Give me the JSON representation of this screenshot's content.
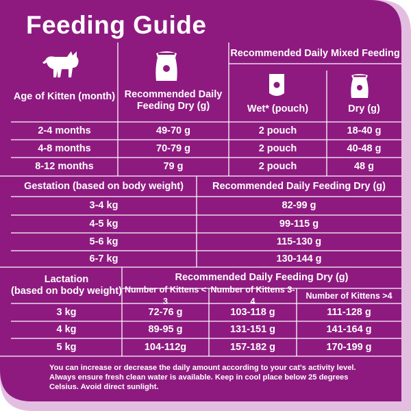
{
  "title": "Feeding Guide",
  "colors": {
    "panel": "#8e1a80",
    "border": "#e2bfe0",
    "lines": "#ffffff"
  },
  "kitten": {
    "header_age": "Age of Kitten (month)",
    "header_dry": "Recommended Daily Feeding Dry (g)",
    "header_mixed": "Recommended Daily Mixed Feeding",
    "header_wet": "Wet* (pouch)",
    "header_mixed_dry": "Dry (g)",
    "rows": [
      {
        "age": "2-4 months",
        "dry": "49-70 g",
        "wet": "2 pouch",
        "mixed_dry": "18-40 g"
      },
      {
        "age": "4-8 months",
        "dry": "70-79 g",
        "wet": "2 pouch",
        "mixed_dry": "40-48 g"
      },
      {
        "age": "8-12 months",
        "dry": "79 g",
        "wet": "2 pouch",
        "mixed_dry": "48 g"
      }
    ]
  },
  "gestation": {
    "header_weight": "Gestation (based on body weight)",
    "header_dry": "Recommended Daily Feeding Dry (g)",
    "rows": [
      {
        "weight": "3-4 kg",
        "dry": "82-99 g"
      },
      {
        "weight": "4-5 kg",
        "dry": "99-115 g"
      },
      {
        "weight": "5-6 kg",
        "dry": "115-130 g"
      },
      {
        "weight": "6-7 kg",
        "dry": "130-144 g"
      }
    ]
  },
  "lactation": {
    "header_line1": "Lactation",
    "header_line2": "(based on body weight)",
    "header_dry": "Recommended Daily Feeding Dry (g)",
    "sub_headers": [
      "Number of Kittens < 3",
      "Number of Kittens 3-4",
      "Number of Kittens >4"
    ],
    "rows": [
      {
        "weight": "3 kg",
        "a": "72-76 g",
        "b": "103-118 g",
        "c": "111-128 g"
      },
      {
        "weight": "4 kg",
        "a": "89-95 g",
        "b": "131-151 g",
        "c": "141-164 g"
      },
      {
        "weight": "5 kg",
        "a": "104-112g",
        "b": "157-182 g",
        "c": "170-199 g"
      }
    ]
  },
  "icons": [
    "kitten-icon",
    "dry-food-bag-icon",
    "wet-pouch-icon",
    "dry-food-bag-icon"
  ],
  "note": "You can increase or decrease the daily amount according to your cat's activity level. Always ensure fresh clean water is available. Keep in cool place below 25 degrees Celsius. Avoid direct sunlight."
}
